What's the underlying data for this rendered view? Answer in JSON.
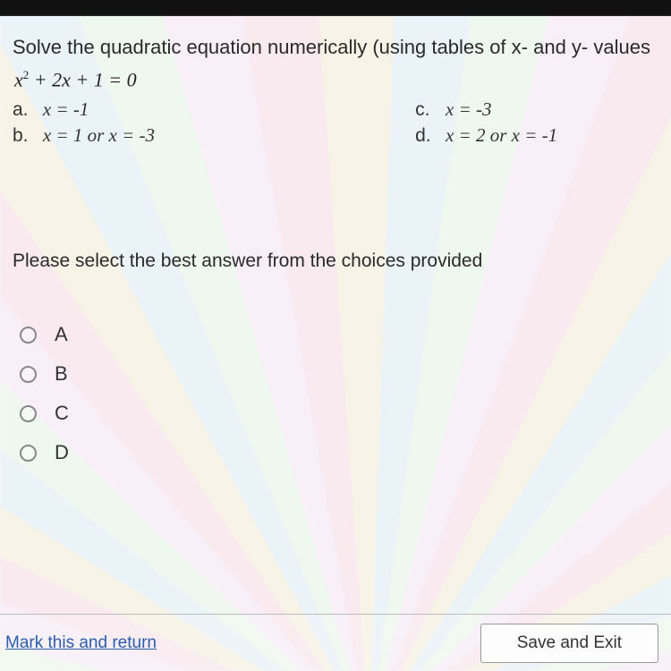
{
  "question": {
    "prompt": "Solve the quadratic equation numerically (using tables of x- and y- values",
    "equation_html": "x<sup>2</sup> + 2x + 1 = 0",
    "choices": {
      "a": {
        "label": "a.",
        "value": "x = -1"
      },
      "b": {
        "label": "b.",
        "value": "x = 1 or x = -3"
      },
      "c": {
        "label": "c.",
        "value": "x = -3"
      },
      "d": {
        "label": "d.",
        "value": "x = 2 or x = -1"
      }
    },
    "instruction": "Please select the best answer from the choices provided"
  },
  "radios": [
    {
      "label": "A"
    },
    {
      "label": "B"
    },
    {
      "label": "C"
    },
    {
      "label": "D"
    }
  ],
  "footer": {
    "mark_link": "Mark this and return",
    "save_button": "Save and Exit"
  },
  "colors": {
    "link": "#2a5db0",
    "text": "#2a2a2a",
    "border": "#999999"
  }
}
